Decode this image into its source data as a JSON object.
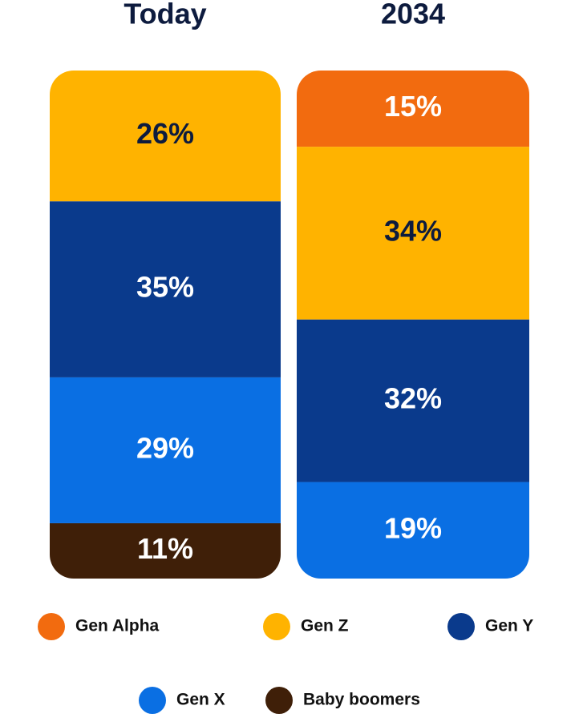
{
  "chart_data": {
    "type": "stacked_bar",
    "categories": [
      "Today",
      "2034"
    ],
    "series": [
      {
        "name": "Gen Alpha",
        "color": "#f26b0f",
        "values": [
          null,
          15
        ],
        "value_labels": [
          null,
          "15%"
        ]
      },
      {
        "name": "Gen Z",
        "color": "#ffb300",
        "values": [
          26,
          34
        ],
        "value_labels": [
          "26%",
          "34%"
        ]
      },
      {
        "name": "Gen Y",
        "color": "#0a3a8c",
        "values": [
          35,
          32
        ],
        "value_labels": [
          "35%",
          "32%"
        ]
      },
      {
        "name": "Gen X",
        "color": "#0a6fe3",
        "values": [
          29,
          19
        ],
        "value_labels": [
          "29%",
          "19%"
        ]
      },
      {
        "name": "Baby boomers",
        "color": "#3f1f08",
        "values": [
          11,
          null
        ],
        "value_labels": [
          "11%",
          null
        ]
      }
    ]
  }
}
